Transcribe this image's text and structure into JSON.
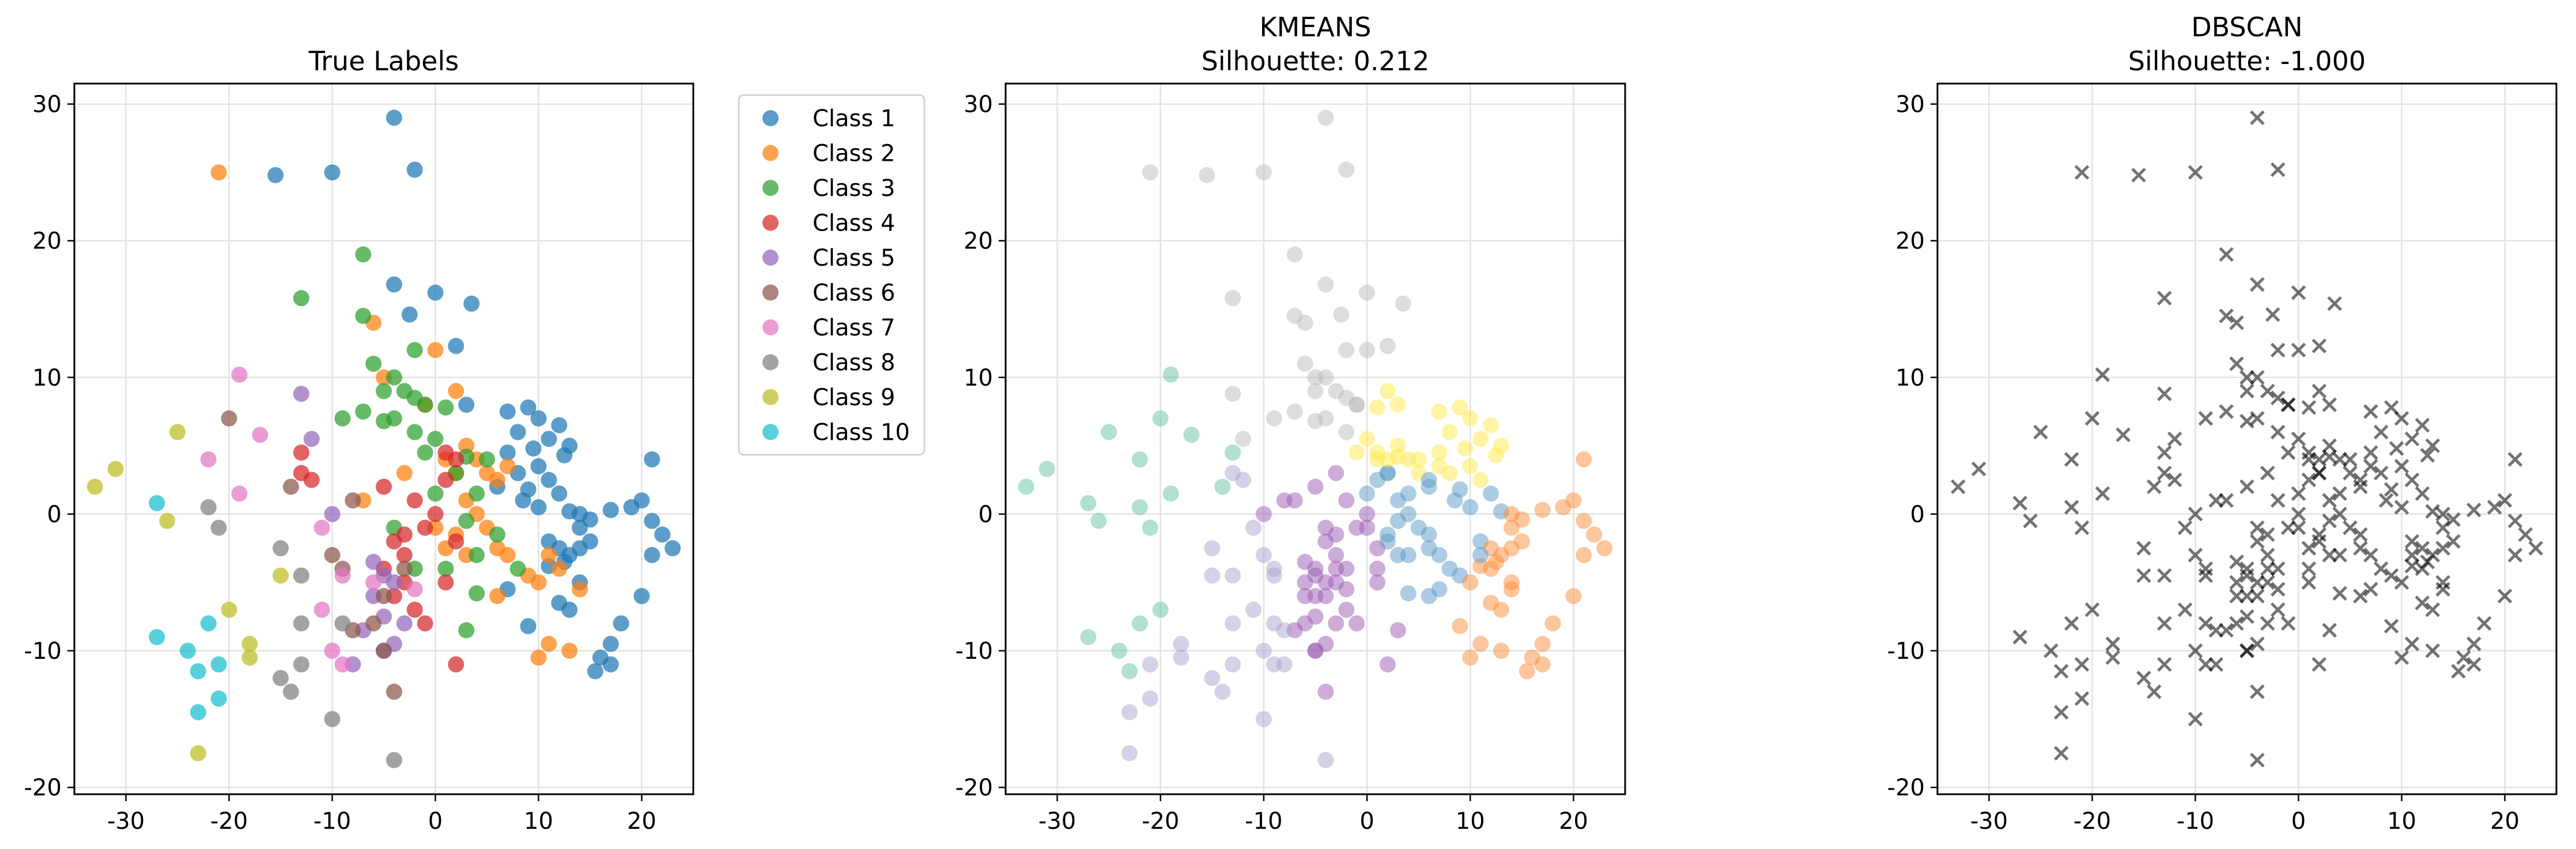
{
  "chart_data": [
    {
      "type": "scatter",
      "title": "True Labels",
      "xlim": [
        -35,
        25
      ],
      "ylim": [
        -20.5,
        31.5
      ],
      "xticks": [
        -30,
        -20,
        -10,
        0,
        10,
        20
      ],
      "yticks": [
        -20,
        -10,
        0,
        10,
        20,
        30
      ],
      "grid": true,
      "legend_position": "outside-right",
      "series": [
        {
          "name": "Class 1",
          "color": "#1f77b4",
          "points": [
            [
              -4,
              29
            ],
            [
              -2,
              25.2
            ],
            [
              -10,
              25
            ],
            [
              -15.5,
              24.8
            ],
            [
              0,
              16.2
            ],
            [
              -4,
              16.8
            ],
            [
              3.5,
              15.4
            ],
            [
              -2.5,
              14.6
            ],
            [
              2,
              12.3
            ],
            [
              3,
              8
            ],
            [
              7,
              7.5
            ],
            [
              9,
              7.8
            ],
            [
              10,
              7
            ],
            [
              12,
              6.5
            ],
            [
              8,
              6
            ],
            [
              11,
              5.5
            ],
            [
              13,
              5
            ],
            [
              9.5,
              4.8
            ],
            [
              7,
              4.5
            ],
            [
              12.5,
              4.3
            ],
            [
              10,
              3.5
            ],
            [
              8,
              3
            ],
            [
              11,
              2.5
            ],
            [
              6,
              2
            ],
            [
              9,
              1.8
            ],
            [
              12,
              1.5
            ],
            [
              8.5,
              1
            ],
            [
              10,
              0.5
            ],
            [
              13,
              0.2
            ],
            [
              14,
              0
            ],
            [
              17,
              0.3
            ],
            [
              15,
              -0.4
            ],
            [
              19,
              0.5
            ],
            [
              20,
              1
            ],
            [
              21,
              -0.5
            ],
            [
              22,
              -1.5
            ],
            [
              23,
              -2.5
            ],
            [
              21,
              -3
            ],
            [
              20,
              -6
            ],
            [
              18,
              -8
            ],
            [
              17,
              -9.5
            ],
            [
              16,
              -10.5
            ],
            [
              15.5,
              -11.5
            ],
            [
              17,
              -11
            ],
            [
              11,
              -2
            ],
            [
              12,
              -2.5
            ],
            [
              13,
              -3
            ],
            [
              11,
              -3.8
            ],
            [
              12.5,
              -3.5
            ],
            [
              14,
              -5
            ],
            [
              13,
              -7
            ],
            [
              9,
              -8.2
            ],
            [
              12,
              -6.5
            ],
            [
              7,
              -5.5
            ],
            [
              21,
              4
            ],
            [
              14,
              -1
            ],
            [
              15,
              -2
            ],
            [
              14,
              -2.5
            ]
          ]
        },
        {
          "name": "Class 2",
          "color": "#ff7f0e",
          "points": [
            [
              -21,
              25
            ],
            [
              -6,
              14
            ],
            [
              0,
              12
            ],
            [
              -5,
              10
            ],
            [
              2,
              9
            ],
            [
              -1,
              8
            ],
            [
              3,
              5
            ],
            [
              4,
              4
            ],
            [
              1,
              4
            ],
            [
              2,
              3
            ],
            [
              5,
              3
            ],
            [
              6,
              2.5
            ],
            [
              7,
              3.5
            ],
            [
              3,
              1
            ],
            [
              4,
              0
            ],
            [
              5,
              -1
            ],
            [
              2,
              -1.5
            ],
            [
              3,
              -3
            ],
            [
              6,
              -2.5
            ],
            [
              7,
              -3
            ],
            [
              9,
              -4.5
            ],
            [
              10,
              -5
            ],
            [
              11,
              -3
            ],
            [
              12,
              -4
            ],
            [
              14,
              -5.5
            ],
            [
              11,
              -9.5
            ],
            [
              13,
              -10
            ],
            [
              10,
              -10.5
            ],
            [
              1,
              -2.5
            ],
            [
              6,
              -6
            ],
            [
              -3,
              3
            ],
            [
              0,
              -1
            ],
            [
              -7,
              1
            ]
          ]
        },
        {
          "name": "Class 3",
          "color": "#2ca02c",
          "points": [
            [
              -13,
              15.8
            ],
            [
              -7,
              19
            ],
            [
              -7,
              14.5
            ],
            [
              -2,
              12
            ],
            [
              -6,
              11
            ],
            [
              -4,
              10
            ],
            [
              -5,
              9
            ],
            [
              -3,
              9
            ],
            [
              -2,
              8.5
            ],
            [
              -1,
              8
            ],
            [
              1,
              7.8
            ],
            [
              -4,
              7
            ],
            [
              -7,
              7.5
            ],
            [
              -9,
              7
            ],
            [
              -5,
              6.8
            ],
            [
              -2,
              6
            ],
            [
              0,
              5.5
            ],
            [
              -1,
              4.5
            ],
            [
              3,
              4.2
            ],
            [
              5,
              4
            ],
            [
              2,
              3
            ],
            [
              4,
              1.5
            ],
            [
              0,
              1.5
            ],
            [
              3,
              -0.5
            ],
            [
              -4,
              -1
            ],
            [
              6,
              -1.5
            ],
            [
              4,
              -3
            ],
            [
              1,
              -4
            ],
            [
              -2,
              -4
            ],
            [
              4,
              -5.8
            ],
            [
              8,
              -4
            ],
            [
              3,
              -8.5
            ]
          ]
        },
        {
          "name": "Class 4",
          "color": "#d62728",
          "points": [
            [
              1,
              4.5
            ],
            [
              2,
              4
            ],
            [
              1,
              2.5
            ],
            [
              -5,
              2
            ],
            [
              -13,
              4.5
            ],
            [
              -13,
              3
            ],
            [
              -12,
              2.5
            ],
            [
              -3,
              -1.5
            ],
            [
              -1,
              -1
            ],
            [
              0,
              0
            ],
            [
              -2,
              1
            ],
            [
              -4,
              -2
            ],
            [
              -3,
              -3
            ],
            [
              -5,
              -4
            ],
            [
              -3,
              -5
            ],
            [
              -4,
              -6
            ],
            [
              -2,
              -7
            ],
            [
              1,
              -5
            ],
            [
              -1,
              -8
            ],
            [
              2,
              -11
            ],
            [
              2,
              -2
            ]
          ]
        },
        {
          "name": "Class 5",
          "color": "#9467bd",
          "points": [
            [
              -13,
              8.8
            ],
            [
              -12,
              5.5
            ],
            [
              -10,
              0
            ],
            [
              -6,
              -3.5
            ],
            [
              -5,
              -4.5
            ],
            [
              -4,
              -5
            ],
            [
              -6,
              -6
            ],
            [
              -5,
              -7.5
            ],
            [
              -3,
              -8
            ],
            [
              -7,
              -8.5
            ],
            [
              -4,
              -9.5
            ],
            [
              -5,
              -10
            ],
            [
              -8,
              -11
            ]
          ]
        },
        {
          "name": "Class 6",
          "color": "#8c564b",
          "points": [
            [
              -20,
              7
            ],
            [
              -14,
              2
            ],
            [
              -8,
              1
            ],
            [
              -10,
              -3
            ],
            [
              -9,
              -4
            ],
            [
              -8,
              -8.5
            ],
            [
              -6,
              -8
            ],
            [
              -5,
              -10
            ],
            [
              -4,
              -13
            ],
            [
              -5,
              -6
            ],
            [
              -3,
              -4
            ]
          ]
        },
        {
          "name": "Class 7",
          "color": "#e377c2",
          "points": [
            [
              -19,
              10.2
            ],
            [
              -17,
              5.8
            ],
            [
              -22,
              4
            ],
            [
              -19,
              1.5
            ],
            [
              -11,
              -1
            ],
            [
              -9,
              -4.5
            ],
            [
              -11,
              -7
            ],
            [
              -10,
              -10
            ],
            [
              -9,
              -11
            ],
            [
              -6,
              -5
            ],
            [
              -2,
              -5.5
            ]
          ]
        },
        {
          "name": "Class 8",
          "color": "#7f7f7f",
          "points": [
            [
              -22,
              0.5
            ],
            [
              -21,
              -1
            ],
            [
              -15,
              -2.5
            ],
            [
              -13,
              -4.5
            ],
            [
              -13,
              -8
            ],
            [
              -15,
              -12
            ],
            [
              -13,
              -11
            ],
            [
              -14,
              -13
            ],
            [
              -10,
              -15
            ],
            [
              -4,
              -18
            ],
            [
              -9,
              -8
            ]
          ]
        },
        {
          "name": "Class 9",
          "color": "#bcbd22",
          "points": [
            [
              -33,
              2
            ],
            [
              -31,
              3.3
            ],
            [
              -25,
              6
            ],
            [
              -26,
              -0.5
            ],
            [
              -20,
              -7
            ],
            [
              -18,
              -9.5
            ],
            [
              -18,
              -10.5
            ],
            [
              -15,
              -4.5
            ],
            [
              -23,
              -17.5
            ]
          ]
        },
        {
          "name": "Class 10",
          "color": "#17becf",
          "points": [
            [
              -27,
              0.8
            ],
            [
              -27,
              -9
            ],
            [
              -24,
              -10
            ],
            [
              -22,
              -8
            ],
            [
              -23,
              -11.5
            ],
            [
              -21,
              -11
            ],
            [
              -23,
              -14.5
            ],
            [
              -21,
              -13.5
            ]
          ]
        }
      ]
    },
    {
      "type": "scatter",
      "title": "KMEANS",
      "subtitle": "Silhouette: 0.212",
      "xlim": [
        -35,
        25
      ],
      "ylim": [
        -20.5,
        31.5
      ],
      "xticks": [
        -30,
        -20,
        -10,
        0,
        10,
        20
      ],
      "yticks": [
        -20,
        -10,
        0,
        10,
        20,
        30
      ],
      "grid": true,
      "opacity": 0.5,
      "same_points_as_panel": 1,
      "cluster_colors": [
        "#66c2a5",
        "#bcbcbc",
        "#ffe94a",
        "#5a9ac8",
        "#fc8d3c",
        "#9b5ab4",
        "#a8a6cf"
      ]
    },
    {
      "type": "scatter",
      "title": "DBSCAN",
      "subtitle": "Silhouette: -1.000",
      "marker": "x",
      "color": "#000000",
      "opacity": 0.55,
      "xlim": [
        -35,
        25
      ],
      "ylim": [
        -20.5,
        31.5
      ],
      "xticks": [
        -30,
        -20,
        -10,
        0,
        10,
        20
      ],
      "yticks": [
        -20,
        -10,
        0,
        10,
        20,
        30
      ],
      "grid": true,
      "same_points_as_panel": 1
    }
  ]
}
